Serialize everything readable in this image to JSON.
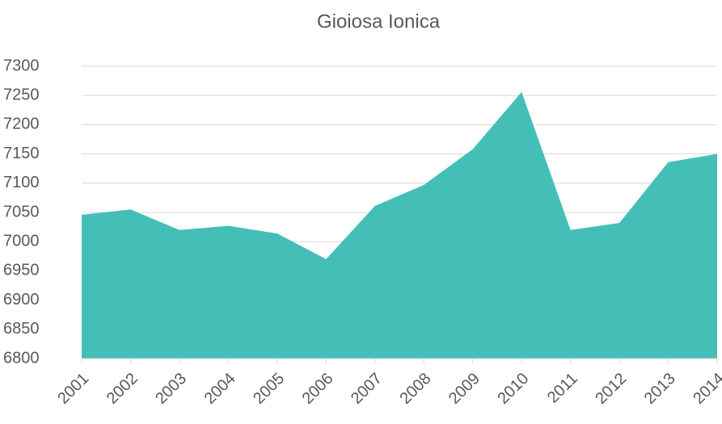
{
  "chart_data": {
    "type": "area",
    "title": "Gioiosa Ionica",
    "categories": [
      "2001",
      "2002",
      "2003",
      "2004",
      "2005",
      "2006",
      "2007",
      "2008",
      "2009",
      "2010",
      "2011",
      "2012",
      "2013",
      "2014"
    ],
    "values": [
      7046,
      7055,
      7020,
      7027,
      7014,
      6970,
      7061,
      7097,
      7158,
      7256,
      7020,
      7032,
      7136,
      7150
    ],
    "color": "#44bfb8",
    "ylim": [
      6800,
      7300
    ],
    "yticks": [
      6800,
      6850,
      6900,
      6950,
      7000,
      7050,
      7100,
      7150,
      7200,
      7250,
      7300
    ],
    "grid": true
  }
}
